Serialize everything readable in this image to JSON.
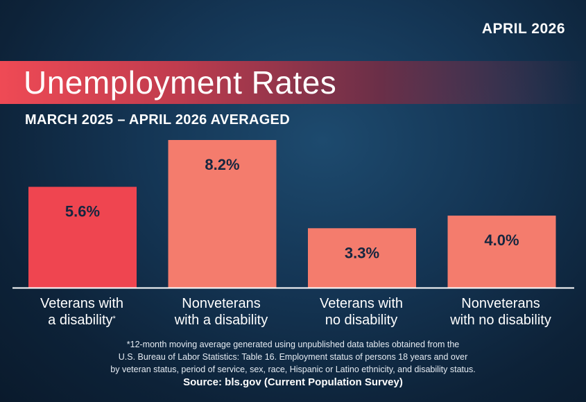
{
  "header": {
    "date": "APRIL 2026",
    "title": "Unemployment Rates",
    "subtitle": "MARCH 2025 – APRIL 2026 AVERAGED"
  },
  "chart_data": {
    "type": "bar",
    "categories": [
      "Veterans with a disability",
      "Nonveterans with a disability",
      "Veterans with no disability",
      "Nonveterans with no disability"
    ],
    "values": [
      5.6,
      8.2,
      3.3,
      4.0
    ],
    "value_labels": [
      "5.6%",
      "8.2%",
      "3.3%",
      "4.0%"
    ],
    "category_lines": [
      [
        "Veterans with",
        "a disability"
      ],
      [
        "Nonveterans",
        "with a disability"
      ],
      [
        "Veterans with",
        "no disability"
      ],
      [
        "Nonveterans",
        "with no disability"
      ]
    ],
    "footnote_marker": "*",
    "colors": [
      "#ef4550",
      "#f47c6d",
      "#f47c6d",
      "#f47c6d"
    ],
    "ylim": [
      0,
      8.2
    ],
    "grid": false,
    "legend": "none"
  },
  "footnote": {
    "lines": [
      "*12-month moving average generated using unpublished data tables obtained from the",
      "U.S. Bureau of Labor Statistics: Table 16. Employment status of persons 18 years and over",
      "by veteran status, period of service, sex, race, Hispanic or Latino ethnicity, and disability status."
    ],
    "source": "Source: bls.gov (Current Population Survey)"
  }
}
